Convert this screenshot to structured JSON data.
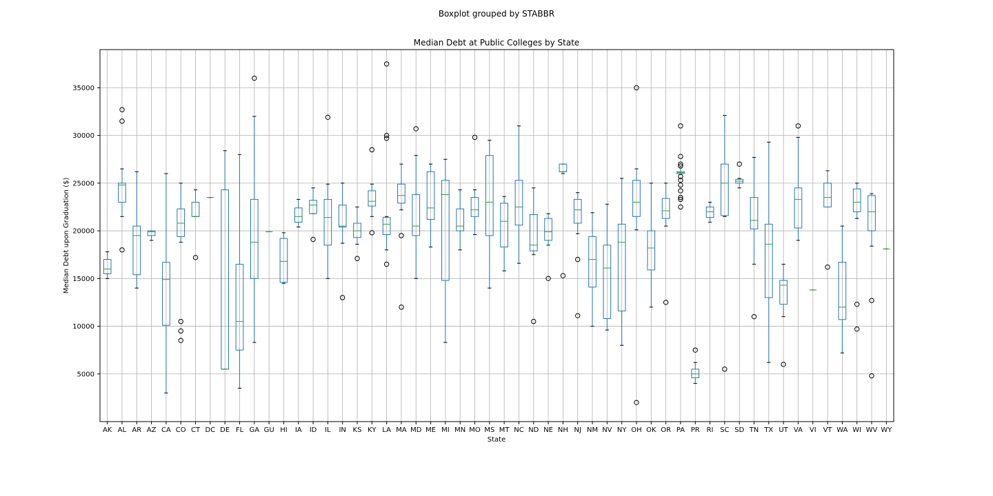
{
  "chart_data": {
    "type": "boxplot",
    "suptitle": "Boxplot grouped by STABBR",
    "title": "Median Debt at Public Colleges by State",
    "xlabel": "State",
    "ylabel": "Median Debt upon Graduation ($)",
    "ylim": [
      0,
      39000
    ],
    "yticks": [
      5000,
      10000,
      15000,
      20000,
      25000,
      30000,
      35000
    ],
    "grid": true,
    "colors": {
      "box": "#1f77b4",
      "median": "#2ca02c",
      "whisker": "#000000",
      "flier": "#000000",
      "grid": "#b0b0b0"
    },
    "categories": [
      "AK",
      "AL",
      "AR",
      "AZ",
      "CA",
      "CO",
      "CT",
      "DC",
      "DE",
      "FL",
      "GA",
      "GU",
      "HI",
      "IA",
      "ID",
      "IL",
      "IN",
      "KS",
      "KY",
      "LA",
      "MA",
      "MD",
      "ME",
      "MI",
      "MN",
      "MO",
      "MS",
      "MT",
      "NC",
      "ND",
      "NE",
      "NH",
      "NJ",
      "NM",
      "NV",
      "NY",
      "OH",
      "OK",
      "OR",
      "PA",
      "PR",
      "RI",
      "SC",
      "SD",
      "TN",
      "TX",
      "UT",
      "VA",
      "VI",
      "VT",
      "WA",
      "WI",
      "WV",
      "WY"
    ],
    "boxes": [
      {
        "wl": 15000,
        "q1": 15500,
        "med": 16000,
        "q3": 17000,
        "wh": 17800,
        "out": []
      },
      {
        "wl": 21500,
        "q1": 23000,
        "med": 24800,
        "q3": 25000,
        "wh": 26500,
        "out": [
          18000,
          31500,
          32700
        ]
      },
      {
        "wl": 14000,
        "q1": 15400,
        "med": 19500,
        "q3": 20500,
        "wh": 26200,
        "out": []
      },
      {
        "wl": 19000,
        "q1": 19500,
        "med": 19900,
        "q3": 20000,
        "wh": 20000,
        "out": []
      },
      {
        "wl": 3000,
        "q1": 10100,
        "med": 14900,
        "q3": 16700,
        "wh": 26000,
        "out": []
      },
      {
        "wl": 18800,
        "q1": 19400,
        "med": 20800,
        "q3": 22300,
        "wh": 25000,
        "out": [
          8500,
          9500,
          10500
        ]
      },
      {
        "wl": 21500,
        "q1": 21500,
        "med": 21500,
        "q3": 23000,
        "wh": 24300,
        "out": [
          17200
        ]
      },
      {
        "wl": 23500,
        "q1": 23500,
        "med": 23500,
        "q3": 23500,
        "wh": 23500,
        "out": []
      },
      {
        "wl": 5500,
        "q1": 5500,
        "med": 5500,
        "q3": 24300,
        "wh": 28400,
        "out": []
      },
      {
        "wl": 3500,
        "q1": 7500,
        "med": 10500,
        "q3": 16500,
        "wh": 28000,
        "out": []
      },
      {
        "wl": 8300,
        "q1": 15000,
        "med": 18800,
        "q3": 23300,
        "wh": 32000,
        "out": [
          36000
        ]
      },
      {
        "wl": 19900,
        "q1": 19900,
        "med": 19900,
        "q3": 19900,
        "wh": 19900,
        "out": []
      },
      {
        "wl": 14500,
        "q1": 14600,
        "med": 16800,
        "q3": 19200,
        "wh": 19800,
        "out": []
      },
      {
        "wl": 20400,
        "q1": 20900,
        "med": 21500,
        "q3": 22400,
        "wh": 23300,
        "out": []
      },
      {
        "wl": 21800,
        "q1": 21800,
        "med": 22700,
        "q3": 23200,
        "wh": 24500,
        "out": [
          19100
        ]
      },
      {
        "wl": 15000,
        "q1": 18500,
        "med": 21400,
        "q3": 23300,
        "wh": 24900,
        "out": [
          31900
        ]
      },
      {
        "wl": 18700,
        "q1": 20400,
        "med": 20500,
        "q3": 22700,
        "wh": 25000,
        "out": [
          13000
        ]
      },
      {
        "wl": 18600,
        "q1": 19300,
        "med": 20000,
        "q3": 20800,
        "wh": 22500,
        "out": [
          17100
        ]
      },
      {
        "wl": 21500,
        "q1": 22600,
        "med": 23100,
        "q3": 24200,
        "wh": 24900,
        "out": [
          19800,
          28500
        ]
      },
      {
        "wl": 18000,
        "q1": 19600,
        "med": 20700,
        "q3": 21400,
        "wh": 21500,
        "out": [
          16500,
          29700,
          30000,
          37500
        ]
      },
      {
        "wl": 22200,
        "q1": 22900,
        "med": 23700,
        "q3": 24900,
        "wh": 27000,
        "out": [
          12000,
          19500
        ]
      },
      {
        "wl": 15000,
        "q1": 19500,
        "med": 20500,
        "q3": 23800,
        "wh": 27900,
        "out": [
          30700
        ]
      },
      {
        "wl": 18300,
        "q1": 21200,
        "med": 22400,
        "q3": 26200,
        "wh": 27000,
        "out": []
      },
      {
        "wl": 8300,
        "q1": 14800,
        "med": 23800,
        "q3": 25300,
        "wh": 27500,
        "out": []
      },
      {
        "wl": 18000,
        "q1": 20000,
        "med": 20500,
        "q3": 22300,
        "wh": 24300,
        "out": []
      },
      {
        "wl": 19600,
        "q1": 21500,
        "med": 22200,
        "q3": 23500,
        "wh": 24300,
        "out": [
          29800
        ]
      },
      {
        "wl": 14000,
        "q1": 19500,
        "med": 23000,
        "q3": 27900,
        "wh": 29500,
        "out": []
      },
      {
        "wl": 15800,
        "q1": 18300,
        "med": 21000,
        "q3": 22900,
        "wh": 23600,
        "out": []
      },
      {
        "wl": 16600,
        "q1": 20600,
        "med": 22500,
        "q3": 25300,
        "wh": 31000,
        "out": []
      },
      {
        "wl": 17500,
        "q1": 17900,
        "med": 18500,
        "q3": 21700,
        "wh": 24500,
        "out": [
          10500
        ]
      },
      {
        "wl": 18500,
        "q1": 19000,
        "med": 19900,
        "q3": 21300,
        "wh": 21800,
        "out": [
          15000
        ]
      },
      {
        "wl": 26000,
        "q1": 26200,
        "med": 26200,
        "q3": 27000,
        "wh": 27000,
        "out": [
          15300
        ]
      },
      {
        "wl": 19700,
        "q1": 20800,
        "med": 22200,
        "q3": 23300,
        "wh": 24000,
        "out": [
          11100,
          17000
        ]
      },
      {
        "wl": 10000,
        "q1": 14100,
        "med": 17000,
        "q3": 19400,
        "wh": 21900,
        "out": []
      },
      {
        "wl": 9600,
        "q1": 10800,
        "med": 16100,
        "q3": 18500,
        "wh": 22800,
        "out": []
      },
      {
        "wl": 8000,
        "q1": 11600,
        "med": 18800,
        "q3": 20700,
        "wh": 25500,
        "out": []
      },
      {
        "wl": 20100,
        "q1": 21500,
        "med": 23000,
        "q3": 25300,
        "wh": 26500,
        "out": [
          2000,
          35000
        ]
      },
      {
        "wl": 12000,
        "q1": 15900,
        "med": 18200,
        "q3": 20000,
        "wh": 25000,
        "out": []
      },
      {
        "wl": 20500,
        "q1": 21300,
        "med": 22100,
        "q3": 23400,
        "wh": 25000,
        "out": [
          12500
        ]
      },
      {
        "wl": 26000,
        "q1": 26000,
        "med": 26100,
        "q3": 26200,
        "wh": 26600,
        "out": [
          22500,
          23300,
          23500,
          24200,
          24800,
          25300,
          25700,
          26800,
          27000,
          27800,
          31000
        ]
      },
      {
        "wl": 4000,
        "q1": 4600,
        "med": 5000,
        "q3": 5500,
        "wh": 6200,
        "out": [
          7500
        ]
      },
      {
        "wl": 20900,
        "q1": 21400,
        "med": 22000,
        "q3": 22500,
        "wh": 23000,
        "out": []
      },
      {
        "wl": 21500,
        "q1": 21600,
        "med": 25000,
        "q3": 27000,
        "wh": 32100,
        "out": [
          5500
        ]
      },
      {
        "wl": 24500,
        "q1": 25000,
        "med": 25200,
        "q3": 25400,
        "wh": 25500,
        "out": [
          27000
        ]
      },
      {
        "wl": 16500,
        "q1": 20200,
        "med": 21100,
        "q3": 23500,
        "wh": 27700,
        "out": [
          11000
        ]
      },
      {
        "wl": 6200,
        "q1": 13000,
        "med": 18600,
        "q3": 20700,
        "wh": 29300,
        "out": []
      },
      {
        "wl": 11000,
        "q1": 12300,
        "med": 14300,
        "q3": 14800,
        "wh": 16500,
        "out": [
          6000
        ]
      },
      {
        "wl": 19000,
        "q1": 20300,
        "med": 23300,
        "q3": 24500,
        "wh": 29800,
        "out": [
          31000
        ]
      },
      {
        "wl": 13800,
        "q1": 13800,
        "med": 13800,
        "q3": 13800,
        "wh": 13800,
        "out": []
      },
      {
        "wl": 22500,
        "q1": 22500,
        "med": 23500,
        "q3": 25000,
        "wh": 26300,
        "out": [
          16200
        ]
      },
      {
        "wl": 7200,
        "q1": 10700,
        "med": 12000,
        "q3": 16700,
        "wh": 20500,
        "out": []
      },
      {
        "wl": 21300,
        "q1": 22000,
        "med": 23000,
        "q3": 24400,
        "wh": 25000,
        "out": [
          9700,
          12300
        ]
      },
      {
        "wl": 18400,
        "q1": 20000,
        "med": 22000,
        "q3": 23700,
        "wh": 23900,
        "out": [
          4800,
          12700
        ]
      },
      {
        "wl": 18100,
        "q1": 18100,
        "med": 18100,
        "q3": 18100,
        "wh": 18100,
        "out": []
      }
    ]
  }
}
